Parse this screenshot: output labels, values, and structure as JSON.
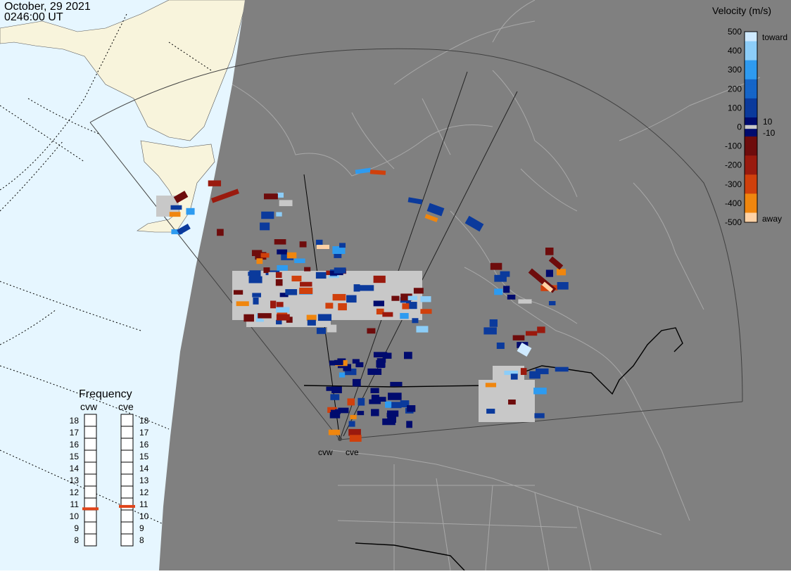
{
  "header": {
    "date": "October, 29 2021",
    "time": "0246:00 UT"
  },
  "legend": {
    "title": "Velocity (m/s)",
    "tick_labels": [
      "500",
      "400",
      "300",
      "200",
      "100",
      "0",
      "-100",
      "-200",
      "-300",
      "-400",
      "-500"
    ],
    "toward_label": "toward",
    "away_label": "away",
    "pos_threshold_label": "10",
    "neg_threshold_label": "-10",
    "colors": [
      "#cfeaff",
      "#8ccdf8",
      "#2e9bf0",
      "#1565c8",
      "#0b3a9c",
      "#000b6e",
      "#6e0c0c",
      "#9a1a0e",
      "#d0400c",
      "#f0860e",
      "#ffd2a6"
    ],
    "zero_band_color": "#c8c8c8"
  },
  "frequency_panel": {
    "title": "Frequency",
    "radars": [
      {
        "name": "cvw",
        "value_mhz": 10.6
      },
      {
        "name": "cve",
        "value_mhz": 10.8
      }
    ],
    "scale_labels": [
      "18",
      "17",
      "16",
      "15",
      "14",
      "13",
      "12",
      "11",
      "10",
      "9",
      "8"
    ],
    "marker_color": "#e0441a"
  },
  "map": {
    "radar_sites": [
      "cvw",
      "cve"
    ],
    "ocean_color": "#e6f6ff",
    "night_color": "#808080",
    "land_day_color": "#f8f4dc",
    "backscatter": [
      {
        "velocity": 300
      },
      {
        "velocity": -250
      },
      {
        "velocity": 120
      },
      {
        "velocity": -150
      },
      {
        "velocity": 80
      },
      {
        "velocity": -80
      },
      {
        "velocity": 50
      },
      {
        "velocity": -60
      },
      {
        "velocity": 0
      },
      {
        "velocity": -400
      },
      {
        "velocity": 400
      },
      {
        "velocity": 150
      }
    ]
  }
}
